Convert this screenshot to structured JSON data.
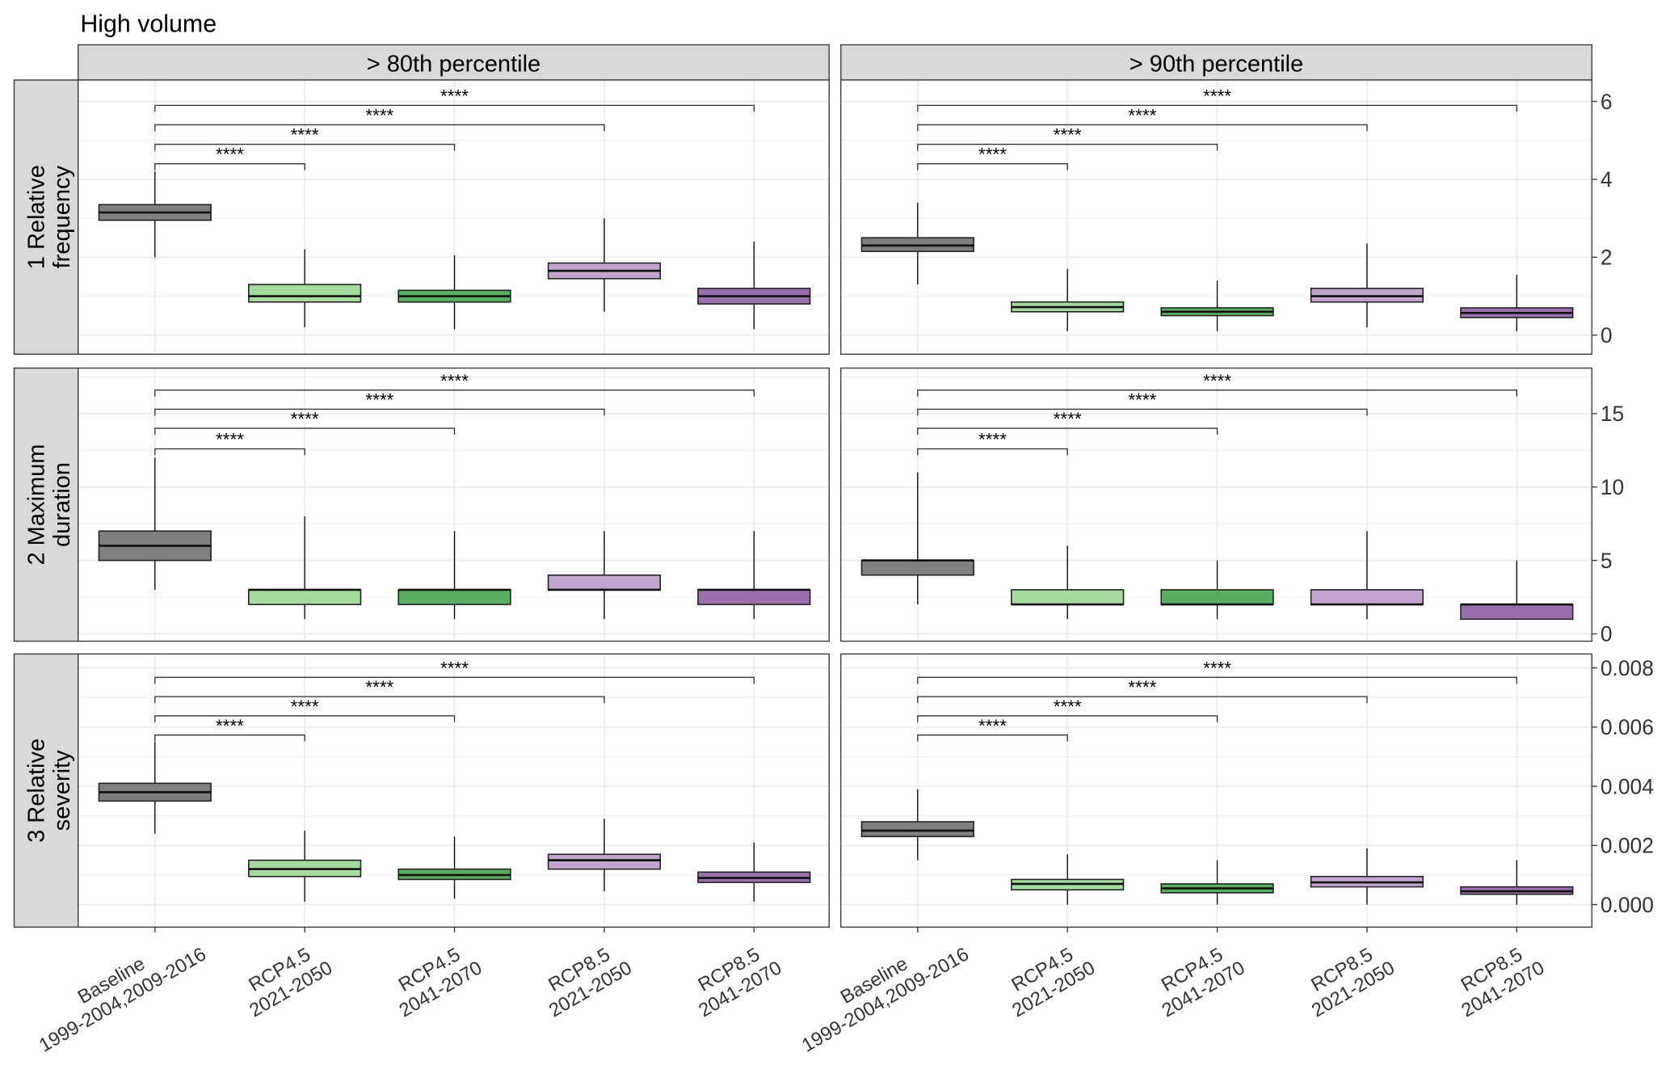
{
  "chart_data": {
    "type": "boxplot",
    "title": "High volume",
    "columns": [
      "> 80th percentile",
      "> 90th percentile"
    ],
    "rows": [
      {
        "lines": [
          "1 Relative",
          "frequency"
        ],
        "ylim": [
          -0.49,
          6.55
        ],
        "ticks": [
          0,
          2,
          4,
          6
        ],
        "tick_labels": [
          "0",
          "2",
          "4",
          "6"
        ],
        "minor": [
          1,
          3,
          5
        ],
        "brackets": [
          4.4,
          4.9,
          5.4,
          5.9
        ]
      },
      {
        "lines": [
          "2 Maximum",
          "duration"
        ],
        "ylim": [
          -0.5,
          18.1
        ],
        "ticks": [
          0,
          5,
          10,
          15
        ],
        "tick_labels": [
          "0",
          "5",
          "10",
          "15"
        ],
        "minor": [
          2.5,
          7.5,
          12.5,
          17.5
        ],
        "brackets": [
          12.6,
          14.0,
          15.3,
          16.6
        ]
      },
      {
        "lines": [
          "3 Relative",
          "severity"
        ],
        "ylim": [
          -0.00076,
          0.00847
        ],
        "ticks": [
          0,
          0.002,
          0.004,
          0.006,
          0.008
        ],
        "tick_labels": [
          "0.000",
          "0.002",
          "0.004",
          "0.006",
          "0.008"
        ],
        "minor": [
          0.001,
          0.003,
          0.005,
          0.007
        ],
        "brackets": [
          0.00573,
          0.00638,
          0.00703,
          0.00768
        ]
      }
    ],
    "categories": [
      {
        "lines": [
          "Baseline",
          "1999-2004,2009-2016"
        ],
        "color": "#7f7f7f"
      },
      {
        "lines": [
          "RCP4.5",
          "2021-2050"
        ],
        "color": "#a6dba0"
      },
      {
        "lines": [
          "RCP4.5",
          "2041-2070"
        ],
        "color": "#5aae61"
      },
      {
        "lines": [
          "RCP8.5",
          "2021-2050"
        ],
        "color": "#c2a5cf"
      },
      {
        "lines": [
          "RCP8.5",
          "2041-2070"
        ],
        "color": "#9970ab"
      }
    ],
    "significance_label": "****",
    "boxes": [
      [
        [
          [
            2.0,
            2.95,
            3.15,
            3.35,
            4.2
          ],
          [
            0.2,
            0.85,
            1.0,
            1.3,
            2.2
          ],
          [
            0.15,
            0.85,
            1.0,
            1.15,
            2.05
          ],
          [
            0.6,
            1.45,
            1.65,
            1.85,
            3.0
          ],
          [
            0.15,
            0.8,
            1.0,
            1.2,
            2.4
          ]
        ],
        [
          [
            1.3,
            2.15,
            2.3,
            2.5,
            3.4
          ],
          [
            0.1,
            0.6,
            0.72,
            0.85,
            1.7
          ],
          [
            0.1,
            0.5,
            0.6,
            0.7,
            1.4
          ],
          [
            0.2,
            0.85,
            1.0,
            1.2,
            2.35
          ],
          [
            0.1,
            0.45,
            0.57,
            0.7,
            1.55
          ]
        ]
      ],
      [
        [
          [
            3,
            5,
            6,
            7,
            12
          ],
          [
            1,
            2,
            3,
            3,
            8
          ],
          [
            1,
            2,
            3,
            3,
            7
          ],
          [
            1,
            3,
            3,
            4,
            7
          ],
          [
            1,
            2,
            3,
            3,
            7
          ]
        ],
        [
          [
            2,
            4,
            5,
            5,
            11
          ],
          [
            1,
            2,
            2,
            3,
            6
          ],
          [
            1,
            2,
            2,
            3,
            5
          ],
          [
            1,
            2,
            2,
            3,
            7
          ],
          [
            1,
            1,
            2,
            2,
            5
          ]
        ]
      ],
      [
        [
          [
            0.0024,
            0.0035,
            0.0038,
            0.0041,
            0.0055
          ],
          [
            0.0001,
            0.00095,
            0.0012,
            0.0015,
            0.0025
          ],
          [
            0.0002,
            0.00085,
            0.001,
            0.0012,
            0.0023
          ],
          [
            0.00045,
            0.0012,
            0.0015,
            0.0017,
            0.0029
          ],
          [
            0.0001,
            0.00075,
            0.0009,
            0.0011,
            0.0021
          ]
        ],
        [
          [
            0.0015,
            0.0023,
            0.0025,
            0.0028,
            0.0039
          ],
          [
            0.0,
            0.0005,
            0.0007,
            0.00085,
            0.0017
          ],
          [
            0.0,
            0.0004,
            0.00055,
            0.0007,
            0.0015
          ],
          [
            0.0,
            0.0006,
            0.00075,
            0.00095,
            0.0019
          ],
          [
            0.0,
            0.00035,
            0.00045,
            0.0006,
            0.0015
          ]
        ]
      ]
    ]
  }
}
